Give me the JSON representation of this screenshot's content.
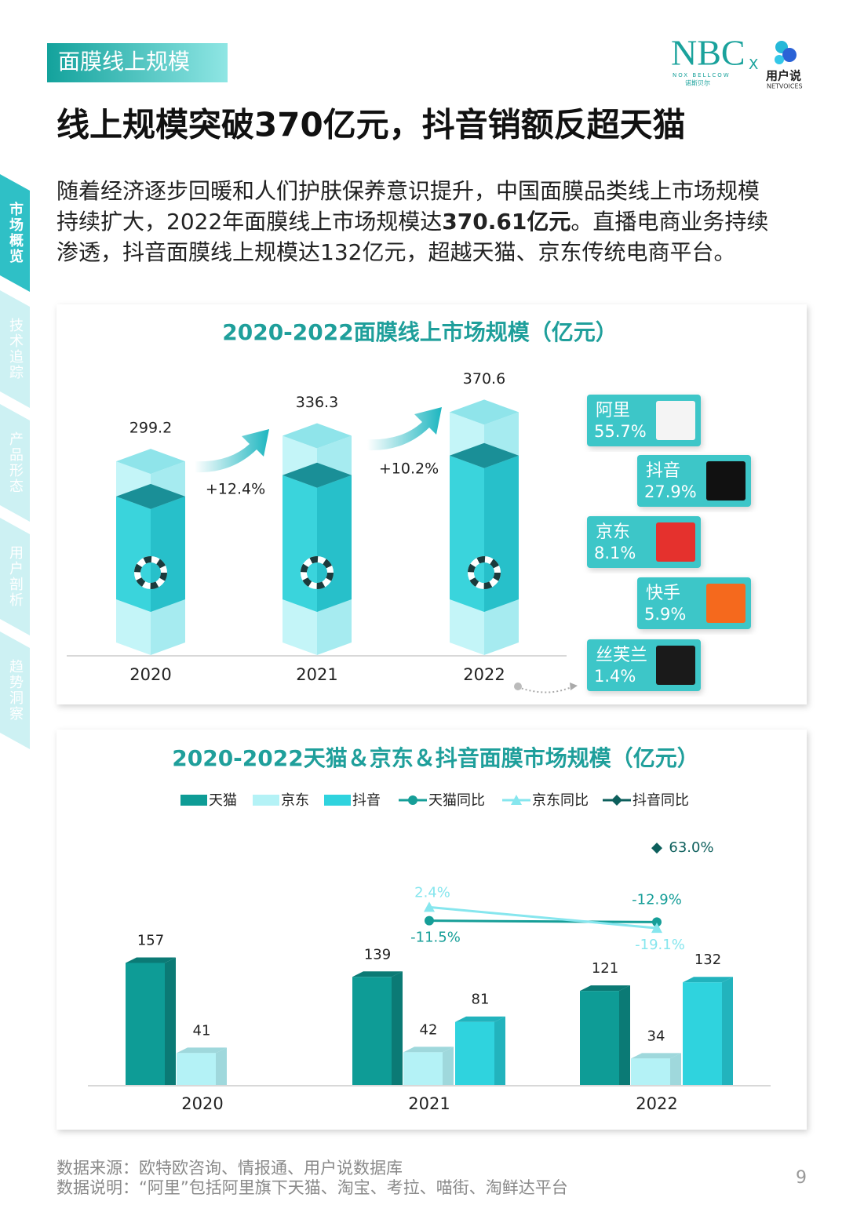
{
  "header": {
    "section_tag": "面膜线上规模",
    "logo_left": "NBC",
    "logo_left_sub": "NOX BELLCOW",
    "logo_left_cn": "诺斯贝尔",
    "logo_sep": "X",
    "logo_right": "用户说",
    "logo_right_sub": "NETVOICES"
  },
  "sidebar": {
    "tabs": [
      "市场概览",
      "技术追踪",
      "产品形态",
      "用户剖析",
      "趋势洞察"
    ],
    "active": 0
  },
  "title": "线上规模突破370亿元，抖音销额反超天猫",
  "body": {
    "lines": [
      [
        {
          "text": "随着经济逐步回暖和人们护肤保养意识提升，中国面膜品类线上市场规模"
        }
      ],
      [
        {
          "text": "持续扩大，2022年面膜线上市场规模达"
        },
        {
          "text": "370.61亿元",
          "bold": true
        },
        {
          "text": "。直播电商业务持续"
        }
      ],
      [
        {
          "text": "渗透，抖音面膜线上规模达132亿元，超越天猫、京东传统电商平台。"
        }
      ]
    ]
  },
  "chart_data": [
    {
      "type": "bar3d",
      "title": "2020-2022面膜线上市场规模（亿元）",
      "categories": [
        "2020",
        "2021",
        "2022"
      ],
      "values": [
        299.2,
        336.3,
        370.6
      ],
      "color": "#33cdd6",
      "ylim": [
        0,
        420
      ],
      "growth": [
        {
          "value": 12.4,
          "label": "+12.4%"
        },
        {
          "value": 10.2,
          "label": "+10.2%"
        }
      ],
      "platforms": {
        "categories": [
          "阿里",
          "抖音",
          "京东",
          "快手",
          "丝芙兰"
        ],
        "values": [
          55.7,
          27.9,
          8.1,
          5.9,
          1.4
        ],
        "value_labels": [
          "55.7%",
          "27.9%",
          "8.1%",
          "5.9%",
          "1.4%"
        ]
      }
    },
    {
      "type": "grouped_bar_line",
      "title": "2020-2022天猫＆京东＆抖音面膜市场规模（亿元）",
      "categories": [
        "2020",
        "2021",
        "2022"
      ],
      "ylim": [
        0,
        326
      ],
      "y2lim": [
        -180,
        80
      ],
      "series": [
        {
          "name": "天猫",
          "color": "#0e9c96",
          "values": [
            157,
            139,
            121
          ]
        },
        {
          "name": "京东",
          "color": "#b4f2f6",
          "values": [
            41,
            42,
            34
          ]
        },
        {
          "name": "抖音",
          "color": "#2fd3de",
          "values": [
            null,
            81,
            132
          ]
        },
        {
          "name": "天猫同比",
          "type": "line",
          "axis": "y2",
          "color": "#169e98",
          "marker": "circle",
          "values": [
            null,
            -11.5,
            -12.9
          ],
          "value_labels": [
            null,
            "-11.5%",
            "-12.9%"
          ]
        },
        {
          "name": "京东同比",
          "type": "line",
          "axis": "y2",
          "color": "#86e6ee",
          "marker": "triangle",
          "values": [
            null,
            2.4,
            -19.1
          ],
          "value_labels": [
            null,
            "2.4%",
            "-19.1%"
          ]
        },
        {
          "name": "抖音同比",
          "type": "line",
          "axis": "y2",
          "color": "#0d5f5c",
          "marker": "diamond",
          "values": [
            null,
            null,
            63.0
          ],
          "value_labels": [
            null,
            null,
            "63.0%"
          ]
        }
      ]
    }
  ],
  "footer": {
    "notes": [
      "数据来源：欧特欧咨询、情报通、用户说数据库",
      "数据说明：“阿里”包括阿里旗下天猫、淘宝、考拉、喵街、淘鲜达平台"
    ],
    "page": "9"
  }
}
